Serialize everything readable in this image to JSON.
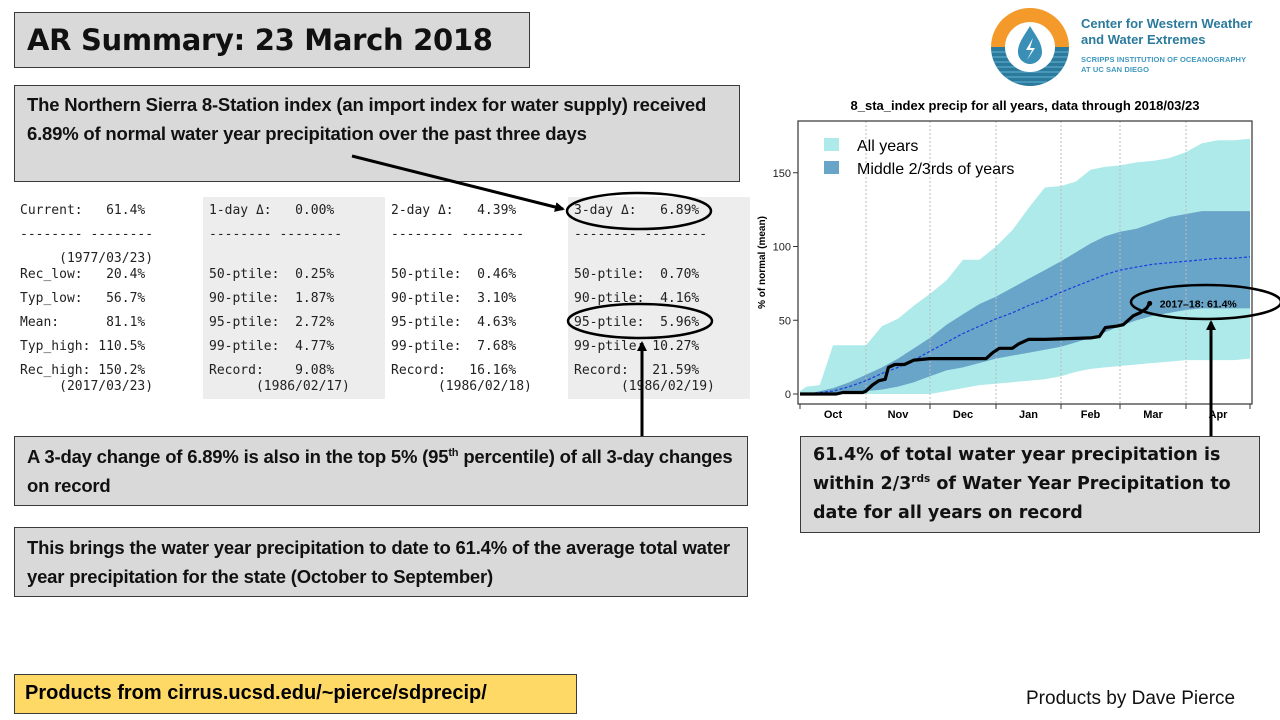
{
  "title": "AR Summary: 23 March 2018",
  "logo": {
    "icon": "water-drop-lightning-icon",
    "name_line1": "Center for Western Weather",
    "name_line2": "and Water Extremes",
    "sub_line1": "SCRIPPS INSTITUTION OF OCEANOGRAPHY",
    "sub_line2": "AT UC SAN DIEGO",
    "colors": {
      "orange": "#f39a2b",
      "blue": "#2b7a9c",
      "light_blue": "#3f98bf"
    }
  },
  "callouts": {
    "top": "The Northern Sierra 8-Station index (an import index for water supply) received 6.89% of normal water year precipitation over the past three days",
    "three_day_pre": "A 3-day change of 6.89% is also in the top 5% (95",
    "three_day_sup": "th",
    "three_day_post": " percentile) of all 3-day changes on record",
    "total": "This brings the water year precipitation to date to 61.4% of the average total water year precipitation for the state (October to September)",
    "right_pre": "61.4% of total water year precipitation is within 2/3",
    "right_sup": "rds",
    "right_post": " of Water Year Precipitation to date for all years on record"
  },
  "stats_table": {
    "columns": [
      {
        "header": "Current:   61.4%",
        "divider": "-------- --------",
        "date_top": "     (1977/03/23)",
        "rows": [
          "Rec_low:   20.4%",
          "Typ_low:   56.7%",
          "Mean:      81.1%",
          "Typ_high: 110.5%",
          "Rec_high: 150.2%"
        ],
        "date_bottom": "     (2017/03/23)"
      },
      {
        "header": "1-day Δ:   0.00%",
        "divider": "-------- --------",
        "date_top": "",
        "rows": [
          "50-ptile:  0.25%",
          "90-ptile:  1.87%",
          "95-ptile:  2.72%",
          "99-ptile:  4.77%",
          "Record:    9.08%"
        ],
        "date_bottom": "      (1986/02/17)"
      },
      {
        "header": "2-day Δ:   4.39%",
        "divider": "-------- --------",
        "date_top": "",
        "rows": [
          "50-ptile:  0.46%",
          "90-ptile:  3.10%",
          "95-ptile:  4.63%",
          "99-ptile:  7.68%",
          "Record:   16.16%"
        ],
        "date_bottom": "      (1986/02/18)"
      },
      {
        "header": "3-day Δ:   6.89%",
        "divider": "-------- --------",
        "date_top": "",
        "rows": [
          "50-ptile:  0.70%",
          "90-ptile:  4.16%",
          "95-ptile:  5.96%",
          "99-ptile: 10.27%",
          "Record:   21.59%"
        ],
        "date_bottom": "      (1986/02/19)"
      }
    ]
  },
  "footer": {
    "products_url": "Products from cirrus.ucsd.edu/~pierce/sdprecip/",
    "credit": "Products by Dave Pierce"
  },
  "chart_data": {
    "type": "area",
    "title": "8_sta_index precip for all years, data through 2018/03/23",
    "xlabel": "",
    "ylabel": "% of normal (mean)",
    "ylim": [
      -5,
      180
    ],
    "yticks": [
      0,
      50,
      100,
      150
    ],
    "xlim_months": [
      0,
      7
    ],
    "xtick_labels": [
      "Oct",
      "Nov",
      "Dec",
      "Jan",
      "Feb",
      "Mar",
      "Apr"
    ],
    "grid": "vertical dotted at month boundaries",
    "legend": {
      "placement": "top-left",
      "entries": [
        "All years",
        "Middle 2/3rds of years"
      ]
    },
    "colors": {
      "all_years": "#aeeaea",
      "middle": "#69a5c8",
      "mean": "#1a3de0",
      "current": "#000000"
    },
    "x": [
      0,
      0.1,
      0.3,
      0.5,
      0.75,
      1.0,
      1.25,
      1.5,
      1.75,
      2.0,
      2.25,
      2.5,
      2.75,
      3.0,
      3.25,
      3.5,
      3.75,
      4.0,
      4.25,
      4.5,
      4.75,
      5.0,
      5.25,
      5.5,
      5.75,
      6.0,
      6.25,
      6.5,
      6.75,
      7.0
    ],
    "series": [
      {
        "name": "All years max",
        "values": [
          2,
          5,
          6,
          33,
          33,
          33,
          46,
          51,
          60,
          68,
          77,
          91,
          91,
          100,
          111,
          126,
          140,
          141,
          144,
          152,
          154,
          155,
          157,
          158,
          160,
          164,
          170,
          172,
          172,
          173
        ]
      },
      {
        "name": "All years min",
        "values": [
          0,
          0,
          0,
          0,
          0,
          0,
          0,
          0,
          0,
          0,
          2,
          4,
          6,
          7,
          8,
          9,
          10,
          12,
          15,
          17,
          18,
          19,
          20,
          21,
          22,
          23,
          23,
          23,
          23,
          24
        ]
      },
      {
        "name": "Middle 2/3rds upper",
        "values": [
          0,
          0,
          2,
          4,
          8,
          13,
          18,
          24,
          31,
          38,
          47,
          54,
          61,
          66,
          72,
          78,
          84,
          90,
          96,
          102,
          107,
          110,
          112,
          116,
          120,
          122,
          124,
          124,
          124,
          124
        ]
      },
      {
        "name": "Middle 2/3rds lower",
        "values": [
          0,
          0,
          0,
          0,
          1,
          2,
          3,
          5,
          8,
          12,
          16,
          18,
          21,
          24,
          26,
          28,
          30,
          32,
          35,
          38,
          42,
          46,
          50,
          53,
          55,
          57,
          58,
          58,
          58,
          58
        ]
      },
      {
        "name": "Mean",
        "values": [
          0,
          0,
          1,
          2,
          5,
          9,
          14,
          18,
          23,
          29,
          35,
          41,
          46,
          51,
          55,
          60,
          64,
          69,
          73,
          77,
          81,
          84,
          86,
          88,
          89,
          90,
          91,
          92,
          92,
          93
        ]
      }
    ],
    "current_year": {
      "name": "2017-18",
      "label": "2017–18: 61.4%",
      "x": [
        0,
        0.3,
        0.55,
        0.65,
        0.95,
        1.0,
        1.1,
        1.2,
        1.3,
        1.35,
        1.45,
        1.6,
        1.75,
        2.0,
        2.5,
        2.85,
        2.95,
        3.05,
        3.25,
        3.35,
        3.5,
        3.75,
        4.5,
        4.65,
        4.75,
        4.95,
        5.05,
        5.2,
        5.3,
        5.4,
        5.45
      ],
      "values": [
        0,
        0,
        0,
        1,
        1,
        2,
        6,
        9,
        10,
        18,
        20,
        20,
        23,
        24,
        24,
        24,
        28,
        31,
        31,
        34,
        37,
        37,
        38,
        39,
        45,
        46,
        47,
        53,
        55,
        58,
        61.4
      ]
    }
  }
}
